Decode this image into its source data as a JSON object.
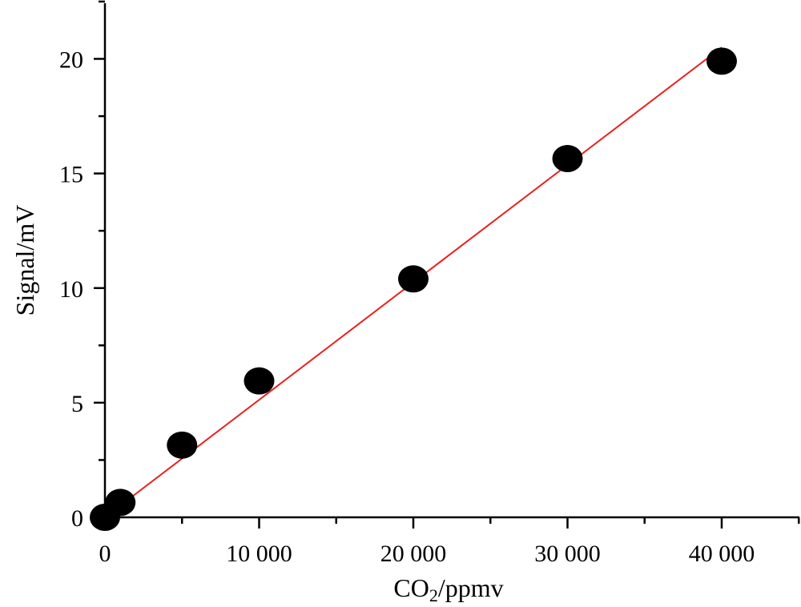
{
  "chart_data": {
    "type": "scatter",
    "xlabel_main": "CO",
    "xlabel_sub": "2",
    "xlabel_rest": "/ppmv",
    "ylabel": "Signal/mV",
    "xlim": [
      0,
      45000
    ],
    "ylim": [
      0,
      23
    ],
    "x_ticks": [
      0,
      10000,
      20000,
      30000,
      40000
    ],
    "x_tick_labels": [
      "0",
      "10 000",
      "20 000",
      "30 000",
      "40 000"
    ],
    "y_ticks": [
      0,
      5,
      10,
      15,
      20
    ],
    "y_tick_labels": [
      "0",
      "5",
      "10",
      "15",
      "20"
    ],
    "grid": false,
    "series": [
      {
        "x": [
          0,
          1000,
          5000,
          10000,
          20000,
          30000,
          40000
        ],
        "y": [
          0.0,
          0.65,
          3.15,
          5.95,
          10.4,
          15.65,
          19.9
        ],
        "marker_color": "#000000"
      }
    ],
    "fit_line": {
      "x": [
        0,
        40000
      ],
      "y": [
        0,
        20.5
      ],
      "color": "#e8211f"
    }
  }
}
